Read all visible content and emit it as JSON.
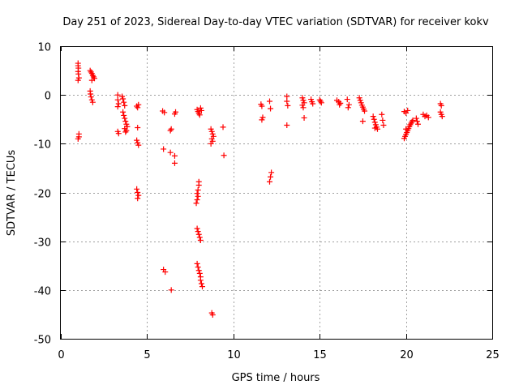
{
  "chart_data": {
    "type": "scatter",
    "title": "Day 251 of 2023, Sidereal Day-to-day VTEC variation (SDTVAR) for receiver kokv",
    "xlabel": "GPS time / hours",
    "ylabel": "SDTVAR / TECUs",
    "xlim": [
      0,
      25
    ],
    "ylim": [
      -50,
      10
    ],
    "xticks": [
      "0",
      "5",
      "10",
      "15",
      "20",
      "25"
    ],
    "yticks": [
      "10",
      "0",
      "-10",
      "-20",
      "-30",
      "-40",
      "-50"
    ],
    "grid": true,
    "marker": "+",
    "color": "#ff0000",
    "series": [
      {
        "name": "SDTVAR",
        "points": [
          [
            1.0,
            6.5
          ],
          [
            1.0,
            6.0
          ],
          [
            1.02,
            5.5
          ],
          [
            1.0,
            4.8
          ],
          [
            1.02,
            4.3
          ],
          [
            1.05,
            3.5
          ],
          [
            1.0,
            3.0
          ],
          [
            1.05,
            -8.0
          ],
          [
            1.05,
            -8.6
          ],
          [
            1.0,
            -9.0
          ],
          [
            1.7,
            5.0
          ],
          [
            1.75,
            4.7
          ],
          [
            1.8,
            4.4
          ],
          [
            1.85,
            4.0
          ],
          [
            1.9,
            3.7
          ],
          [
            1.95,
            3.4
          ],
          [
            1.8,
            3.0
          ],
          [
            1.7,
            0.8
          ],
          [
            1.72,
            0.2
          ],
          [
            1.75,
            -0.4
          ],
          [
            1.8,
            -1.0
          ],
          [
            1.85,
            -1.5
          ],
          [
            3.3,
            0.0
          ],
          [
            3.3,
            -1.0
          ],
          [
            3.35,
            -1.8
          ],
          [
            3.3,
            -2.4
          ],
          [
            3.3,
            -7.5
          ],
          [
            3.35,
            -7.9
          ],
          [
            3.55,
            -0.3
          ],
          [
            3.6,
            -0.8
          ],
          [
            3.65,
            -1.5
          ],
          [
            3.7,
            -2.2
          ],
          [
            3.6,
            -3.5
          ],
          [
            3.65,
            -4.2
          ],
          [
            3.7,
            -4.8
          ],
          [
            3.75,
            -5.4
          ],
          [
            3.8,
            -6.0
          ],
          [
            3.85,
            -6.5
          ],
          [
            3.7,
            -6.9
          ],
          [
            3.8,
            -7.3
          ],
          [
            3.75,
            -7.6
          ],
          [
            4.4,
            -2.3
          ],
          [
            4.45,
            -2.6
          ],
          [
            4.5,
            -2.0
          ],
          [
            4.45,
            -6.7
          ],
          [
            4.4,
            -9.3
          ],
          [
            4.45,
            -9.8
          ],
          [
            4.5,
            -10.3
          ],
          [
            4.4,
            -19.3
          ],
          [
            4.45,
            -20.0
          ],
          [
            4.5,
            -20.6
          ],
          [
            4.45,
            -21.2
          ],
          [
            5.9,
            -3.3
          ],
          [
            6.0,
            -3.6
          ],
          [
            5.95,
            -11.1
          ],
          [
            5.95,
            -35.8
          ],
          [
            6.05,
            -36.3
          ],
          [
            6.35,
            -7.3
          ],
          [
            6.4,
            -7.0
          ],
          [
            6.35,
            -11.8
          ],
          [
            6.6,
            -12.5
          ],
          [
            6.6,
            -14.0
          ],
          [
            6.6,
            -3.9
          ],
          [
            6.65,
            -3.5
          ],
          [
            6.4,
            -40.0
          ],
          [
            7.9,
            -3.0
          ],
          [
            7.95,
            -3.4
          ],
          [
            8.0,
            -3.8
          ],
          [
            8.05,
            -4.1
          ],
          [
            8.1,
            -2.7
          ],
          [
            8.15,
            -3.2
          ],
          [
            8.0,
            -17.8
          ],
          [
            8.0,
            -18.5
          ],
          [
            7.95,
            -19.5
          ],
          [
            7.9,
            -20.2
          ],
          [
            7.95,
            -20.8
          ],
          [
            7.9,
            -21.5
          ],
          [
            7.85,
            -22.2
          ],
          [
            7.9,
            -27.4
          ],
          [
            7.95,
            -28.0
          ],
          [
            8.0,
            -28.6
          ],
          [
            8.05,
            -29.2
          ],
          [
            8.1,
            -29.8
          ],
          [
            7.9,
            -34.6
          ],
          [
            7.95,
            -35.3
          ],
          [
            8.0,
            -36.0
          ],
          [
            8.05,
            -36.6
          ],
          [
            8.1,
            -37.3
          ],
          [
            8.1,
            -38.0
          ],
          [
            8.15,
            -38.7
          ],
          [
            8.2,
            -39.3
          ],
          [
            8.7,
            -7.0
          ],
          [
            8.75,
            -7.5
          ],
          [
            8.8,
            -8.0
          ],
          [
            8.85,
            -8.5
          ],
          [
            8.75,
            -9.0
          ],
          [
            8.8,
            -9.5
          ],
          [
            8.7,
            -10.0
          ],
          [
            8.75,
            -44.7
          ],
          [
            8.8,
            -45.1
          ],
          [
            9.4,
            -6.6
          ],
          [
            9.45,
            -12.4
          ],
          [
            11.6,
            -1.9
          ],
          [
            11.65,
            -2.3
          ],
          [
            11.7,
            -4.6
          ],
          [
            11.65,
            -5.1
          ],
          [
            12.1,
            -1.3
          ],
          [
            12.15,
            -2.8
          ],
          [
            12.2,
            -15.9
          ],
          [
            12.15,
            -16.8
          ],
          [
            12.1,
            -17.8
          ],
          [
            13.1,
            -0.3
          ],
          [
            13.1,
            -1.3
          ],
          [
            13.15,
            -2.2
          ],
          [
            13.1,
            -6.2
          ],
          [
            14.0,
            -0.6
          ],
          [
            14.05,
            -1.1
          ],
          [
            14.1,
            -1.6
          ],
          [
            14.0,
            -2.1
          ],
          [
            14.05,
            -2.6
          ],
          [
            14.1,
            -4.7
          ],
          [
            14.5,
            -0.9
          ],
          [
            14.55,
            -1.4
          ],
          [
            14.6,
            -1.8
          ],
          [
            15.0,
            -1.0
          ],
          [
            15.05,
            -1.3
          ],
          [
            15.1,
            -1.6
          ],
          [
            16.0,
            -1.1
          ],
          [
            16.1,
            -1.4
          ],
          [
            16.2,
            -1.7
          ],
          [
            16.15,
            -2.0
          ],
          [
            16.6,
            -0.9
          ],
          [
            16.65,
            -2.6
          ],
          [
            16.7,
            -2.0
          ],
          [
            17.3,
            -0.6
          ],
          [
            17.35,
            -1.1
          ],
          [
            17.4,
            -1.6
          ],
          [
            17.45,
            -2.1
          ],
          [
            17.5,
            -2.5
          ],
          [
            17.55,
            -2.9
          ],
          [
            17.6,
            -3.3
          ],
          [
            17.5,
            -5.4
          ],
          [
            18.1,
            -4.4
          ],
          [
            18.15,
            -5.0
          ],
          [
            18.2,
            -5.6
          ],
          [
            18.25,
            -6.1
          ],
          [
            18.3,
            -6.6
          ],
          [
            18.35,
            -7.0
          ],
          [
            18.2,
            -6.8
          ],
          [
            18.6,
            -4.0
          ],
          [
            18.65,
            -5.2
          ],
          [
            18.7,
            -6.2
          ],
          [
            19.9,
            -3.4
          ],
          [
            20.0,
            -3.7
          ],
          [
            20.1,
            -3.2
          ],
          [
            19.9,
            -8.9
          ],
          [
            19.95,
            -8.5
          ],
          [
            20.0,
            -8.1
          ],
          [
            20.05,
            -7.7
          ],
          [
            20.1,
            -7.3
          ],
          [
            20.15,
            -6.9
          ],
          [
            20.2,
            -6.5
          ],
          [
            20.25,
            -6.1
          ],
          [
            20.3,
            -5.8
          ],
          [
            20.35,
            -5.5
          ],
          [
            20.4,
            -5.2
          ],
          [
            20.0,
            -7.0
          ],
          [
            20.6,
            -4.8
          ],
          [
            20.65,
            -5.4
          ],
          [
            20.7,
            -6.0
          ],
          [
            21.0,
            -4.0
          ],
          [
            21.1,
            -4.4
          ],
          [
            21.2,
            -4.2
          ],
          [
            21.3,
            -4.6
          ],
          [
            22.0,
            -1.8
          ],
          [
            22.05,
            -2.2
          ],
          [
            22.0,
            -3.5
          ],
          [
            22.05,
            -4.0
          ],
          [
            22.1,
            -4.4
          ]
        ]
      }
    ]
  }
}
